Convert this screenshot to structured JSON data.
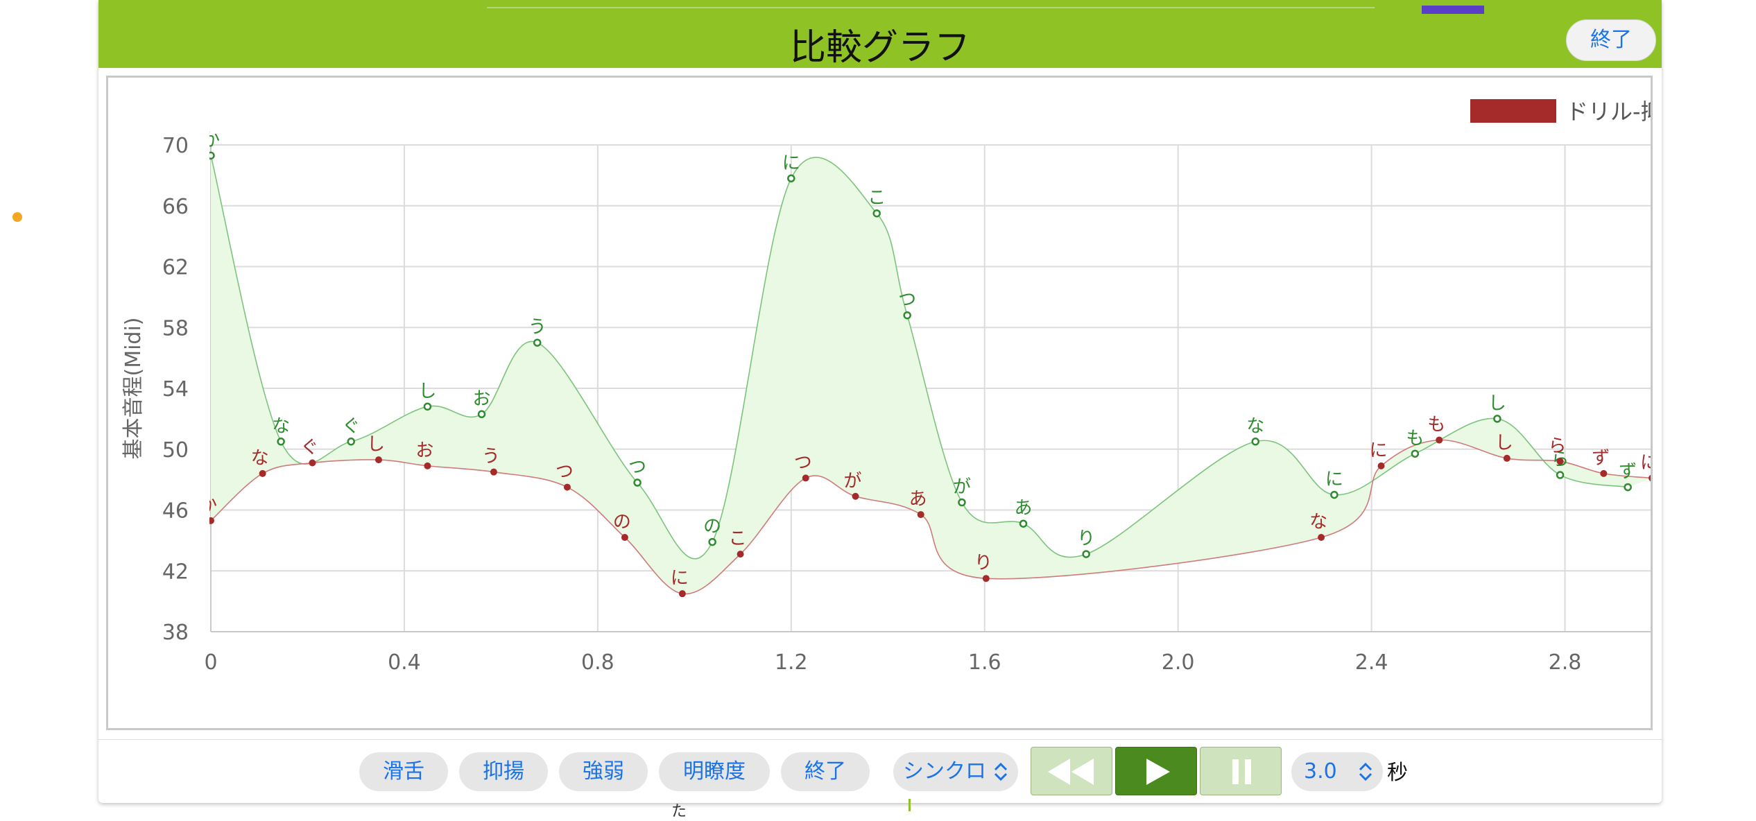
{
  "header": {
    "title": "比較グラフ",
    "close_label": "終了"
  },
  "colors": {
    "accent": "#8fc225",
    "teacher": "#2e8b2e",
    "drill": "#a52a2a",
    "fill": "#e9f9e3",
    "link": "#1a73e8"
  },
  "legend": {
    "label": "ドリル-抑揚"
  },
  "chart_data": {
    "type": "line",
    "ylabel": "基本音程(Midi)",
    "xlabel": "",
    "xlim": [
      0,
      3.0
    ],
    "ylim": [
      38,
      70
    ],
    "xticks": [
      "0",
      "0.4",
      "0.8",
      "1.2",
      "1.6",
      "2.0",
      "2.4",
      "2.8"
    ],
    "yticks": [
      "38",
      "42",
      "46",
      "50",
      "54",
      "58",
      "62",
      "66",
      "70"
    ],
    "grid": true,
    "legend_position": "top-right",
    "series": [
      {
        "name": "",
        "role": "teacher",
        "points": [
          {
            "x": 0.0,
            "y": 69.3,
            "label": "か"
          },
          {
            "x": 0.145,
            "y": 50.5,
            "label": "な"
          },
          {
            "x": 0.29,
            "y": 50.5,
            "label": "ぐ"
          },
          {
            "x": 0.448,
            "y": 52.8,
            "label": "し"
          },
          {
            "x": 0.56,
            "y": 52.3,
            "label": "お"
          },
          {
            "x": 0.675,
            "y": 57.0,
            "label": "う"
          },
          {
            "x": 0.882,
            "y": 47.8,
            "label": "つ"
          },
          {
            "x": 1.037,
            "y": 43.9,
            "label": "の"
          },
          {
            "x": 1.2,
            "y": 67.8,
            "label": "に"
          },
          {
            "x": 1.377,
            "y": 65.5,
            "label": "こ"
          },
          {
            "x": 1.44,
            "y": 58.8,
            "label": "つ"
          },
          {
            "x": 1.553,
            "y": 46.5,
            "label": "が"
          },
          {
            "x": 1.68,
            "y": 45.1,
            "label": "あ"
          },
          {
            "x": 1.81,
            "y": 43.1,
            "label": "り"
          },
          {
            "x": 2.16,
            "y": 50.5,
            "label": "な"
          },
          {
            "x": 2.323,
            "y": 47.0,
            "label": "に"
          },
          {
            "x": 2.49,
            "y": 49.7,
            "label": "も"
          },
          {
            "x": 2.66,
            "y": 52.0,
            "label": "し"
          },
          {
            "x": 2.79,
            "y": 48.3,
            "label": "ら"
          },
          {
            "x": 2.93,
            "y": 47.5,
            "label": "ず"
          }
        ]
      },
      {
        "name": "ドリル-抑揚",
        "role": "drill",
        "points": [
          {
            "x": 0.0,
            "y": 45.3,
            "label": "か"
          },
          {
            "x": 0.107,
            "y": 48.4,
            "label": "な"
          },
          {
            "x": 0.21,
            "y": 49.1,
            "label": "ぐ"
          },
          {
            "x": 0.347,
            "y": 49.3,
            "label": "し"
          },
          {
            "x": 0.448,
            "y": 48.9,
            "label": "お"
          },
          {
            "x": 0.585,
            "y": 48.5,
            "label": "う"
          },
          {
            "x": 0.737,
            "y": 47.5,
            "label": "つ"
          },
          {
            "x": 0.856,
            "y": 44.2,
            "label": "の"
          },
          {
            "x": 0.975,
            "y": 40.5,
            "label": "に"
          },
          {
            "x": 1.095,
            "y": 43.1,
            "label": "こ"
          },
          {
            "x": 1.23,
            "y": 48.1,
            "label": "つ"
          },
          {
            "x": 1.333,
            "y": 46.9,
            "label": "が"
          },
          {
            "x": 1.468,
            "y": 45.7,
            "label": "あ"
          },
          {
            "x": 1.603,
            "y": 41.5,
            "label": "り"
          },
          {
            "x": 2.296,
            "y": 44.2,
            "label": "な"
          },
          {
            "x": 2.42,
            "y": 48.9,
            "label": "に"
          },
          {
            "x": 2.54,
            "y": 50.6,
            "label": "も"
          },
          {
            "x": 2.68,
            "y": 49.4,
            "label": "し"
          },
          {
            "x": 2.79,
            "y": 49.2,
            "label": "ら"
          },
          {
            "x": 2.88,
            "y": 48.4,
            "label": "ず"
          },
          {
            "x": 2.98,
            "y": 48.1,
            "label": "に"
          }
        ]
      }
    ]
  },
  "toolbar": {
    "buttons": [
      "滑舌",
      "抑揚",
      "強弱",
      "明瞭度",
      "終了"
    ],
    "sync": {
      "label": "シンクロ",
      "chevron": "⌃⌄"
    },
    "speed": {
      "value": "3.0",
      "unit": "秒"
    },
    "media": {
      "rewind": "rewind-icon",
      "play": "play-icon",
      "pause": "pause-icon"
    }
  },
  "below_text": "た"
}
